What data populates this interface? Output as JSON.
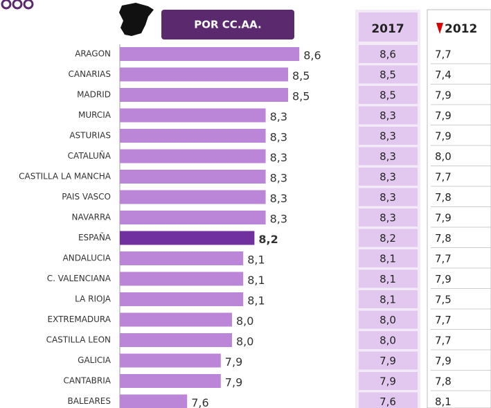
{
  "chart_data": {
    "type": "bar",
    "orientation": "horizontal",
    "button": "POR CC.AA.",
    "categories": [
      "ARAGON",
      "CANARIAS",
      "MADRID",
      "MURCIA",
      "ASTURIAS",
      "CATALUÑA",
      "CASTILLA LA MANCHA",
      "PAIS VASCO",
      "NAVARRA",
      "ESPAÑA",
      "ANDALUCIA",
      "C. VALENCIANA",
      "LA RIOJA",
      "EXTREMADURA",
      "CASTILLA LEON",
      "GALICIA",
      "CANTABRIA",
      "BALEARES"
    ],
    "values": [
      8.6,
      8.5,
      8.5,
      8.3,
      8.3,
      8.3,
      8.3,
      8.3,
      8.3,
      8.2,
      8.1,
      8.1,
      8.1,
      8.0,
      8.0,
      7.9,
      7.9,
      7.6
    ],
    "value_labels": [
      "8,6",
      "8,5",
      "8,5",
      "8,3",
      "8,3",
      "8,3",
      "8,3",
      "8,3",
      "8,3",
      "8,2",
      "8,1",
      "8,1",
      "8,1",
      "8,0",
      "8,0",
      "7,9",
      "7,9",
      "7,6"
    ],
    "color": "#bb86d8",
    "highlight": {
      "category": "ESPAÑA",
      "color": "#7030a0"
    },
    "xlim": [
      7,
      9
    ],
    "table": {
      "headers": [
        "2017",
        "2012"
      ],
      "rows": [
        [
          "8,6",
          "7,7"
        ],
        [
          "8,5",
          "7,4"
        ],
        [
          "8,5",
          "7,9"
        ],
        [
          "8,3",
          "7,9"
        ],
        [
          "8,3",
          "7,9"
        ],
        [
          "8,3",
          "8,0"
        ],
        [
          "8,3",
          "7,7"
        ],
        [
          "8,3",
          "7,8"
        ],
        [
          "8,3",
          "7,9"
        ],
        [
          "8,2",
          "7,8"
        ],
        [
          "8,1",
          "7,7"
        ],
        [
          "8,1",
          "7,9"
        ],
        [
          "8,1",
          "7,5"
        ],
        [
          "8,0",
          "7,7"
        ],
        [
          "8,0",
          "7,7"
        ],
        [
          "7,9",
          "7,9"
        ],
        [
          "7,9",
          "7,8"
        ],
        [
          "7,6",
          "8,1"
        ]
      ]
    }
  }
}
